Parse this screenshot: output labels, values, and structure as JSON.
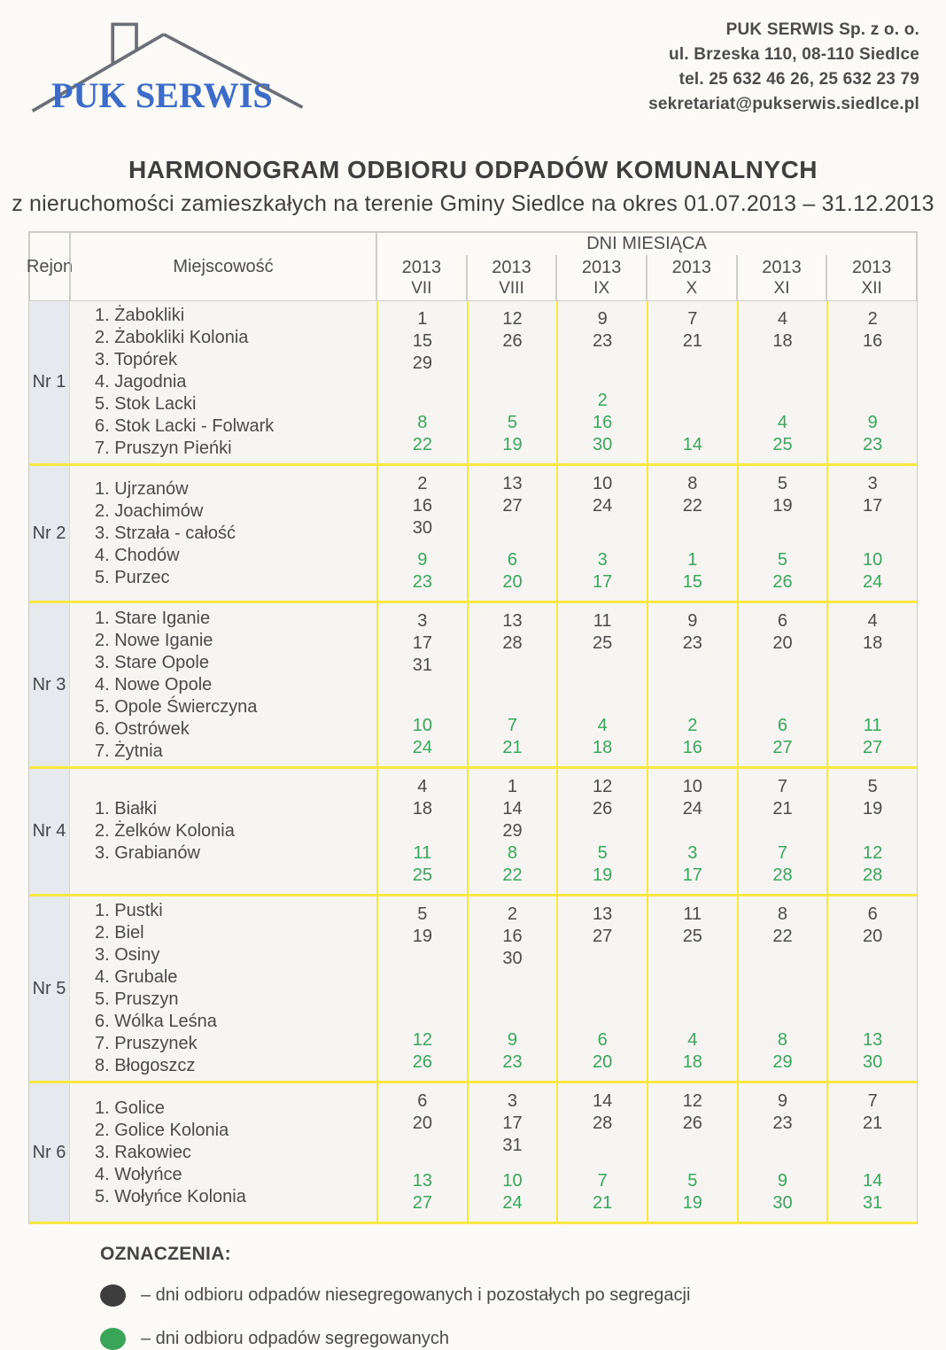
{
  "logo": {
    "text": "PUK SERWIS"
  },
  "contact": {
    "lines": [
      "PUK SERWIS Sp. z o. o.",
      "ul. Brzeska 110, 08-110 Siedlce",
      "tel. 25 632 46 26, 25 632 23 79",
      "sekretariat@pukserwis.siedlce.pl"
    ]
  },
  "title": "HARMONOGRAM ODBIORU ODPADÓW KOMUNALNYCH",
  "subtitle": "z nieruchomości zamieszkałych na terenie Gminy Siedlce na okres 01.07.2013 – 31.12.2013",
  "table": {
    "headers": {
      "rejon": "Rejon",
      "miejscowosc": "Miejscowość",
      "dni": "DNI MIESIĄCA"
    },
    "months": [
      {
        "year": "2013",
        "numeral": "VII"
      },
      {
        "year": "2013",
        "numeral": "VIII"
      },
      {
        "year": "2013",
        "numeral": "IX"
      },
      {
        "year": "2013",
        "numeral": "X"
      },
      {
        "year": "2013",
        "numeral": "XI"
      },
      {
        "year": "2013",
        "numeral": "XII"
      }
    ],
    "regions": [
      {
        "name": "Nr 1",
        "localities": [
          "1. Żabokliki",
          "2. Żabokliki Kolonia",
          "3. Topórek",
          "4. Jagodnia",
          "5. Stok Lacki",
          "6. Stok Lacki - Folwark",
          "7. Pruszyn Pieńki"
        ],
        "cells": [
          {
            "black": [
              "1",
              "15",
              "29"
            ],
            "green": [
              "8",
              "22"
            ]
          },
          {
            "black": [
              "12",
              "26"
            ],
            "green": [
              "5",
              "19"
            ]
          },
          {
            "black": [
              "9",
              "23"
            ],
            "green": [
              "2",
              "16",
              "30"
            ]
          },
          {
            "black": [
              "7",
              "21"
            ],
            "green": [
              "14"
            ]
          },
          {
            "black": [
              "4",
              "18"
            ],
            "green": [
              "4",
              "25"
            ]
          },
          {
            "black": [
              "2",
              "16"
            ],
            "green": [
              "9",
              "23"
            ]
          }
        ]
      },
      {
        "name": "Nr 2",
        "localities": [
          "1. Ujrzanów",
          "2. Joachimów",
          "3. Strzała - całość",
          "4. Chodów",
          "5. Purzec"
        ],
        "cells": [
          {
            "black": [
              "2",
              "16",
              "30"
            ],
            "green": [
              "9",
              "23"
            ]
          },
          {
            "black": [
              "13",
              "27"
            ],
            "green": [
              "6",
              "20"
            ]
          },
          {
            "black": [
              "10",
              "24"
            ],
            "green": [
              "3",
              "17"
            ]
          },
          {
            "black": [
              "8",
              "22"
            ],
            "green": [
              "1",
              "15"
            ]
          },
          {
            "black": [
              "5",
              "19"
            ],
            "green": [
              "5",
              "26"
            ]
          },
          {
            "black": [
              "3",
              "17"
            ],
            "green": [
              "10",
              "24"
            ]
          }
        ]
      },
      {
        "name": "Nr 3",
        "localities": [
          "1. Stare Iganie",
          "2. Nowe Iganie",
          "3. Stare Opole",
          "4. Nowe Opole",
          "5. Opole Świerczyna",
          "6. Ostrówek",
          "7. Żytnia"
        ],
        "cells": [
          {
            "black": [
              "3",
              "17",
              "31"
            ],
            "green": [
              "10",
              "24"
            ]
          },
          {
            "black": [
              "13",
              "28"
            ],
            "green": [
              "7",
              "21"
            ]
          },
          {
            "black": [
              "11",
              "25"
            ],
            "green": [
              "4",
              "18"
            ]
          },
          {
            "black": [
              "9",
              "23"
            ],
            "green": [
              "2",
              "16"
            ]
          },
          {
            "black": [
              "6",
              "20"
            ],
            "green": [
              "6",
              "27"
            ]
          },
          {
            "black": [
              "4",
              "18"
            ],
            "green": [
              "11",
              "27"
            ]
          }
        ]
      },
      {
        "name": "Nr 4",
        "localities": [
          "1. Białki",
          "2. Żelków Kolonia",
          "3. Grabianów"
        ],
        "cells": [
          {
            "black": [
              "4",
              "18"
            ],
            "green": [
              "11",
              "25"
            ]
          },
          {
            "black": [
              "1",
              "14",
              "29"
            ],
            "green": [
              "8",
              "22"
            ]
          },
          {
            "black": [
              "12",
              "26"
            ],
            "green": [
              "5",
              "19"
            ]
          },
          {
            "black": [
              "10",
              "24"
            ],
            "green": [
              "3",
              "17"
            ]
          },
          {
            "black": [
              "7",
              "21"
            ],
            "green": [
              "7",
              "28"
            ]
          },
          {
            "black": [
              "5",
              "19"
            ],
            "green": [
              "12",
              "28"
            ]
          }
        ]
      },
      {
        "name": "Nr 5",
        "localities": [
          "1. Pustki",
          "2. Biel",
          "3. Osiny",
          "4. Grubale",
          "5. Pruszyn",
          "6. Wólka Leśna",
          "7. Pruszynek",
          "8. Błogoszcz"
        ],
        "cells": [
          {
            "black": [
              "5",
              "19"
            ],
            "green": [
              "12",
              "26"
            ]
          },
          {
            "black": [
              "2",
              "16",
              "30"
            ],
            "green": [
              "9",
              "23"
            ]
          },
          {
            "black": [
              "13",
              "27"
            ],
            "green": [
              "6",
              "20"
            ]
          },
          {
            "black": [
              "11",
              "25"
            ],
            "green": [
              "4",
              "18"
            ]
          },
          {
            "black": [
              "8",
              "22"
            ],
            "green": [
              "8",
              "29"
            ]
          },
          {
            "black": [
              "6",
              "20"
            ],
            "green": [
              "13",
              "30"
            ]
          }
        ]
      },
      {
        "name": "Nr 6",
        "localities": [
          "1. Golice",
          "2. Golice Kolonia",
          "3. Rakowiec",
          "4. Wołyńce",
          "5. Wołyńce Kolonia"
        ],
        "cells": [
          {
            "black": [
              "6",
              "20"
            ],
            "green": [
              "13",
              "27"
            ]
          },
          {
            "black": [
              "3",
              "17",
              "31"
            ],
            "green": [
              "10",
              "24"
            ]
          },
          {
            "black": [
              "14",
              "28"
            ],
            "green": [
              "7",
              "21"
            ]
          },
          {
            "black": [
              "12",
              "26"
            ],
            "green": [
              "5",
              "19"
            ]
          },
          {
            "black": [
              "9",
              "23"
            ],
            "green": [
              "9",
              "30"
            ]
          },
          {
            "black": [
              "7",
              "21"
            ],
            "green": [
              "14",
              "31"
            ]
          }
        ]
      }
    ]
  },
  "legend": {
    "title": "OZNACZENIA:",
    "items": [
      {
        "color": "#3d3d3d",
        "label": "– dni odbioru odpadów niesegregowanych i pozostałych po segregacji"
      },
      {
        "color": "#3aa558",
        "label": "– dni odbioru odpadów segregowanych"
      }
    ]
  },
  "colors": {
    "logo_blue": "#3c6cc8",
    "separator_yellow": "#f7e843",
    "segregated_green": "#3aa55c",
    "unsegregated_dark": "#4b4b4b"
  }
}
